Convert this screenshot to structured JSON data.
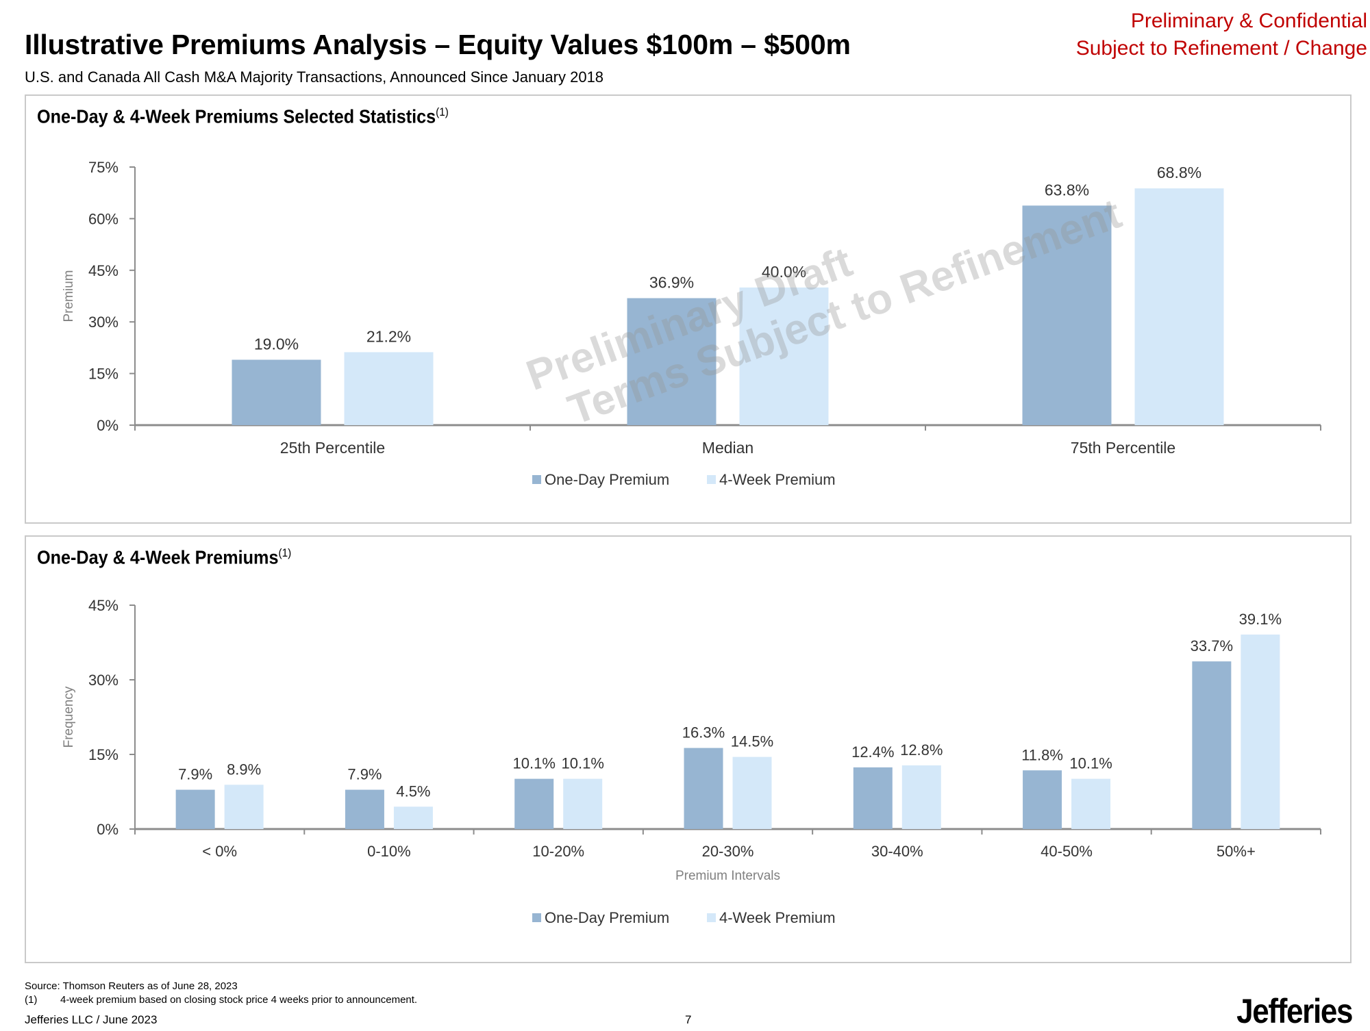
{
  "header": {
    "title": "Illustrative Premiums Analysis – Equity Values $100m – $500m",
    "subtitle": "U.S. and Canada All Cash M&A Majority Transactions, Announced Since January 2018",
    "confidential_line1": "Preliminary & Confidential",
    "confidential_line2": "Subject to Refinement / Change"
  },
  "watermark": {
    "line1": "Preliminary Draft",
    "line2": "Terms Subject to Refinement"
  },
  "colors": {
    "one_day": "#97b5d2",
    "four_week": "#d4e8f9",
    "axis": "#8c8c8c",
    "confidential": "#c00000"
  },
  "panels": {
    "top_title": "One-Day & 4-Week Premiums Selected Statistics",
    "top_footnote_ref": "(1)",
    "bottom_title": "One-Day & 4-Week Premiums",
    "bottom_footnote_ref": "(1)"
  },
  "chart_data": [
    {
      "type": "bar",
      "title": "One-Day & 4-Week Premiums Selected Statistics",
      "categories": [
        "25th Percentile",
        "Median",
        "75th Percentile"
      ],
      "series": [
        {
          "name": "One-Day Premium",
          "values": [
            19.0,
            36.9,
            63.8
          ],
          "labels": [
            "19.0%",
            "36.9%",
            "63.8%"
          ]
        },
        {
          "name": "4-Week Premium",
          "values": [
            21.2,
            40.0,
            68.8
          ],
          "labels": [
            "21.2%",
            "40.0%",
            "68.8%"
          ]
        }
      ],
      "ylabel": "Premium",
      "xlabel": "",
      "ylim": [
        0,
        75
      ],
      "yticks": [
        0,
        15,
        30,
        45,
        60,
        75
      ],
      "ytick_labels": [
        "0%",
        "15%",
        "30%",
        "45%",
        "60%",
        "75%"
      ],
      "legend": "bottom-center",
      "grid": false
    },
    {
      "type": "bar",
      "title": "One-Day & 4-Week Premiums",
      "categories": [
        "< 0%",
        "0-10%",
        "10-20%",
        "20-30%",
        "30-40%",
        "40-50%",
        "50%+"
      ],
      "series": [
        {
          "name": "One-Day Premium",
          "values": [
            7.9,
            7.9,
            10.1,
            16.3,
            12.4,
            11.8,
            33.7
          ],
          "labels": [
            "7.9%",
            "7.9%",
            "10.1%",
            "16.3%",
            "12.4%",
            "11.8%",
            "33.7%"
          ]
        },
        {
          "name": "4-Week Premium",
          "values": [
            8.9,
            4.5,
            10.1,
            14.5,
            12.8,
            10.1,
            39.1
          ],
          "labels": [
            "8.9%",
            "4.5%",
            "10.1%",
            "14.5%",
            "12.8%",
            "10.1%",
            "39.1%"
          ]
        }
      ],
      "ylabel": "Frequency",
      "xlabel": "Premium Intervals",
      "ylim": [
        0,
        45
      ],
      "yticks": [
        0,
        15,
        30,
        45
      ],
      "ytick_labels": [
        "0%",
        "15%",
        "30%",
        "45%"
      ],
      "legend": "bottom-center",
      "grid": false
    }
  ],
  "footer": {
    "source": "Source: Thomson Reuters as of June 28, 2023",
    "footnote_num": "(1)",
    "footnote_text": "4-week premium based on closing stock price 4 weeks prior to announcement.",
    "left": "Jefferies LLC  /  June 2023",
    "page_number": "7",
    "logo_text": "Jefferies"
  }
}
